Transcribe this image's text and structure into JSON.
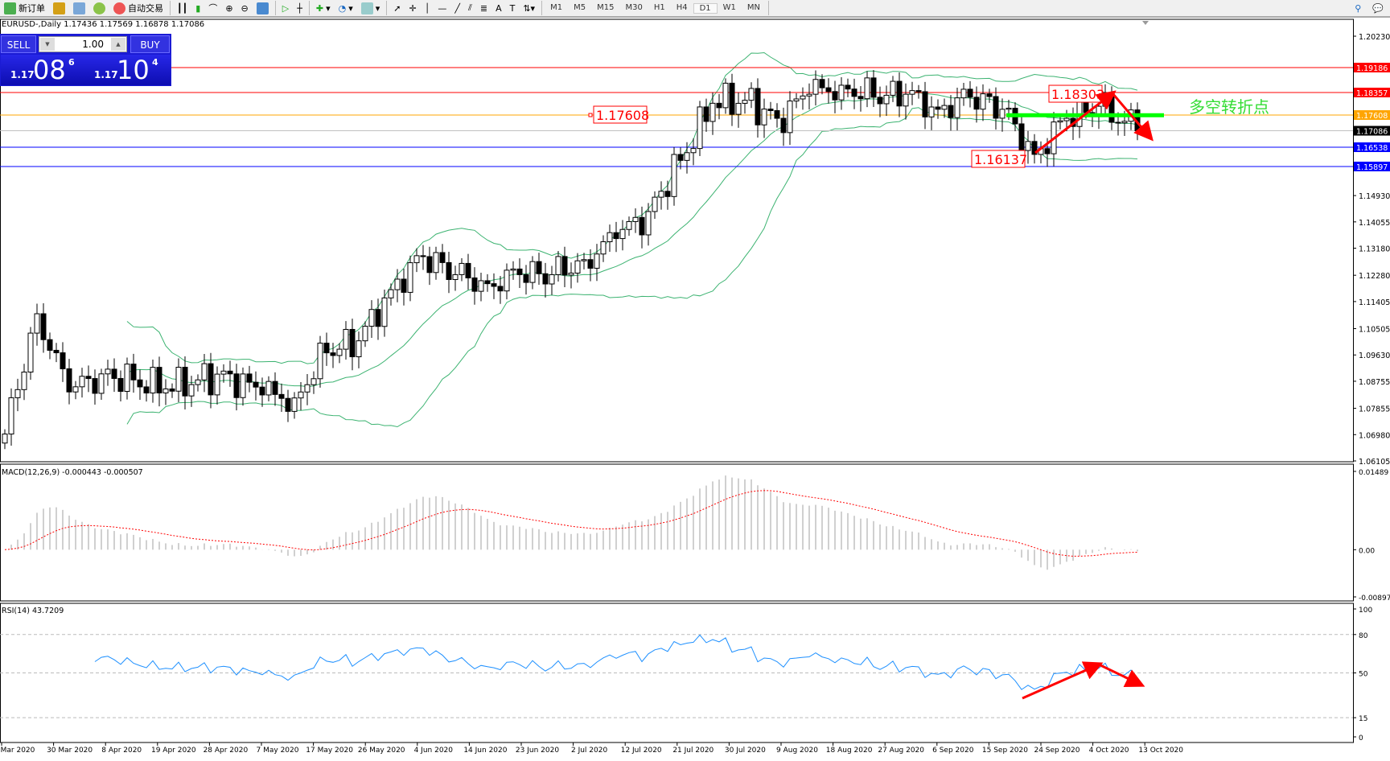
{
  "toolbar": {
    "new_order": "新订单",
    "auto_trading": "自动交易",
    "timeframes": [
      "M1",
      "M5",
      "M15",
      "M30",
      "H1",
      "H4",
      "D1",
      "W1",
      "MN"
    ],
    "active_timeframe": "D1"
  },
  "chart": {
    "symbol_line": "EURUSD-,Daily  1.17436 1.17569 1.16878 1.17086"
  },
  "trade_panel": {
    "sell_label": "SELL",
    "buy_label": "BUY",
    "lot": "1.00",
    "sell_small": "1.17",
    "sell_big": "08",
    "sell_tail": "6",
    "buy_small": "1.17",
    "buy_big": "10",
    "buy_tail": "4"
  },
  "chart_data": {
    "type": "candlestick",
    "price_axis_ticks": [
      "1.20230",
      "1.14930",
      "1.14055",
      "1.13180",
      "1.12280",
      "1.11405",
      "1.10505",
      "1.09630",
      "1.08755",
      "1.07855",
      "1.06980",
      "1.06105"
    ],
    "price_range": [
      1.06105,
      1.2023
    ],
    "date_labels": [
      "Mar 2020",
      "30 Mar 2020",
      "8 Apr 2020",
      "19 Apr 2020",
      "28 Apr 2020",
      "7 May 2020",
      "17 May 2020",
      "26 May 2020",
      "4 Jun 2020",
      "14 Jun 2020",
      "23 Jun 2020",
      "2 Jul 2020",
      "12 Jul 2020",
      "21 Jul 2020",
      "30 Jul 2020",
      "9 Aug 2020",
      "18 Aug 2020",
      "27 Aug 2020",
      "6 Sep 2020",
      "15 Sep 2020",
      "24 Sep 2020",
      "4 Oct 2020",
      "13 Oct 2020"
    ],
    "close_anchors": [
      [
        0,
        1.07
      ],
      [
        5,
        1.11
      ],
      [
        10,
        1.084
      ],
      [
        15,
        1.09
      ],
      [
        20,
        1.088
      ],
      [
        25,
        1.085
      ],
      [
        30,
        1.088
      ],
      [
        35,
        1.09
      ],
      [
        40,
        1.083
      ],
      [
        45,
        1.082
      ],
      [
        50,
        1.097
      ],
      [
        55,
        1.101
      ],
      [
        60,
        1.118
      ],
      [
        65,
        1.129
      ],
      [
        70,
        1.123
      ],
      [
        75,
        1.12
      ],
      [
        80,
        1.123
      ],
      [
        85,
        1.123
      ],
      [
        90,
        1.128
      ],
      [
        95,
        1.135
      ],
      [
        100,
        1.144
      ],
      [
        105,
        1.161
      ],
      [
        110,
        1.18
      ],
      [
        115,
        1.181
      ],
      [
        120,
        1.175
      ],
      [
        125,
        1.183
      ],
      [
        130,
        1.186
      ],
      [
        135,
        1.182
      ],
      [
        140,
        1.183
      ],
      [
        145,
        1.178
      ],
      [
        150,
        1.182
      ],
      [
        155,
        1.178
      ],
      [
        160,
        1.163
      ],
      [
        165,
        1.175
      ],
      [
        170,
        1.179
      ],
      [
        174,
        1.174
      ],
      [
        176,
        1.17086
      ]
    ],
    "horizontal_lines": [
      {
        "price": "1.19186",
        "color": "#ff0000"
      },
      {
        "price": "1.18357",
        "color": "#ff0000"
      },
      {
        "price": "1.17608",
        "color": "#ffa500"
      },
      {
        "price": "1.17086",
        "color": "#000000",
        "line": "#c0c0c0"
      },
      {
        "price": "1.16538",
        "color": "#0000ff"
      },
      {
        "price": "1.15897",
        "color": "#0000ff"
      }
    ],
    "annotations": [
      {
        "text": "1.17608",
        "price": 1.17608
      },
      {
        "text": "1.18303",
        "price": 1.18303
      },
      {
        "text": "1.16137",
        "price": 1.16137
      }
    ],
    "turning_point_label": "多空转折点",
    "turning_point_price": 1.176,
    "indicators": {
      "bollinger": "20,2",
      "macd_label": "MACD(12,26,9) -0.000443 -0.000507",
      "macd_ticks": [
        "0.01489",
        "0.00",
        "-0.008977"
      ],
      "macd_range": [
        -0.008977,
        0.01489
      ],
      "rsi_label": "RSI(14) 43.7209",
      "rsi_ticks": [
        "100",
        "80",
        "50",
        "15",
        "0"
      ],
      "rsi_levels": [
        80,
        50,
        15
      ]
    },
    "colors": {
      "bands": "#3cb371",
      "macd_hist": "#c0c0c0",
      "macd_signal": "#ff0000",
      "rsi": "#1e90ff",
      "arrows": "#ff0000",
      "turning_line": "#00ff00"
    }
  }
}
